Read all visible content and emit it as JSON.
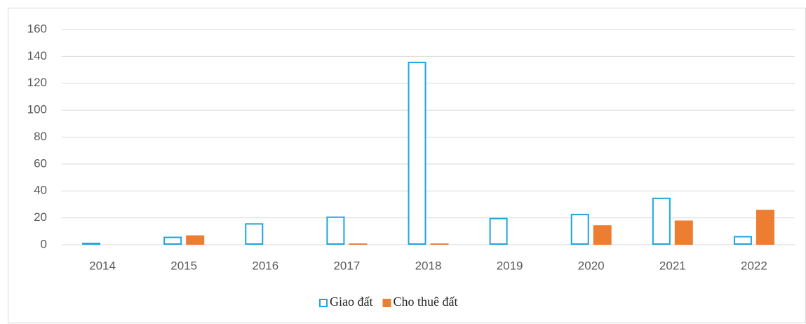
{
  "chart_data": {
    "type": "bar",
    "categories": [
      "2014",
      "2015",
      "2016",
      "2017",
      "2018",
      "2019",
      "2020",
      "2021",
      "2022"
    ],
    "series": [
      {
        "name": "Giao đất",
        "color": "#1ea5df",
        "filled": false,
        "values": [
          1.5,
          6,
          16,
          21,
          136,
          20,
          23,
          35,
          6.5
        ]
      },
      {
        "name": "Cho thuê đất",
        "color": "#ed7d31",
        "filled": true,
        "values": [
          0,
          7,
          0,
          1,
          1,
          0,
          14.5,
          18,
          26
        ]
      }
    ],
    "ylim": [
      0,
      160
    ],
    "yticks": [
      0,
      20,
      40,
      60,
      80,
      100,
      120,
      140,
      160
    ],
    "grid": true,
    "legend": "bottom"
  }
}
